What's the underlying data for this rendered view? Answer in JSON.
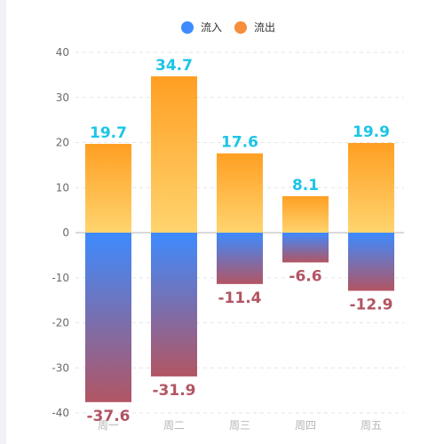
{
  "chart_data": {
    "type": "bar",
    "title": "",
    "xlabel": "",
    "ylabel": "",
    "categories": [
      "周一",
      "周二",
      "周三",
      "周四",
      "周五"
    ],
    "series": [
      {
        "name": "流入",
        "values": [
          -37.6,
          -31.9,
          -11.4,
          -6.6,
          -12.9
        ],
        "color": "#3d8bff"
      },
      {
        "name": "流出",
        "values": [
          19.7,
          34.7,
          17.6,
          8.1,
          19.9
        ],
        "color": "#f58e3d"
      }
    ],
    "ylim": [
      -40,
      40
    ],
    "yticks": [
      40,
      30,
      20,
      10,
      0,
      -10,
      -20,
      -30,
      -40
    ],
    "grid": true,
    "legend": "top-center",
    "stacked": true,
    "gradients": {
      "positive": {
        "top": "#ff9f22",
        "bottom": "#ffd46f"
      },
      "negative": {
        "top": "#3d8bff",
        "bottom": "#b25563"
      }
    },
    "label_colors": {
      "positive": "#1cc5e6",
      "negative": "#b25563"
    }
  }
}
